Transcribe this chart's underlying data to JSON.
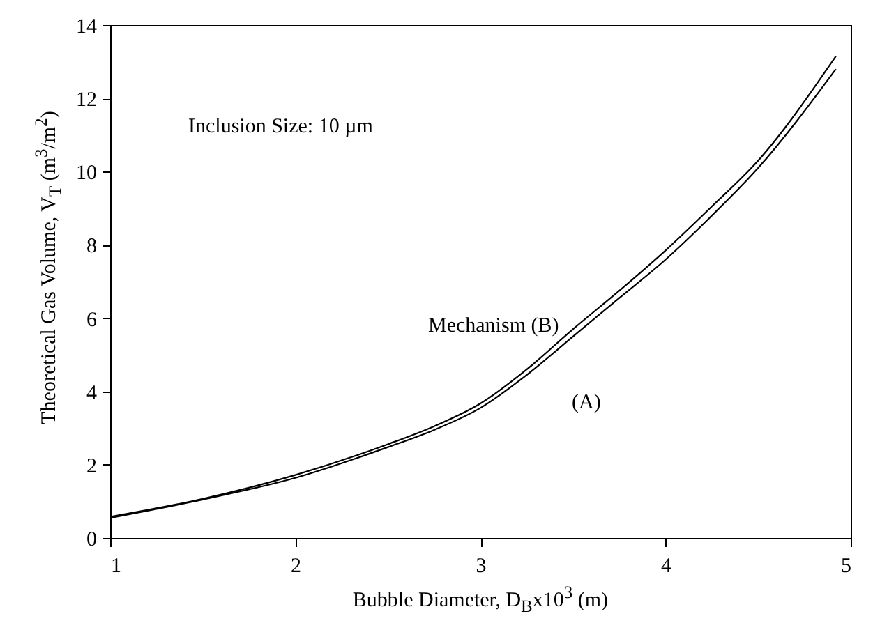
{
  "chart_data": {
    "type": "line",
    "xlabel": "Bubble Diameter,  D$_{B}$x10$^{3}$  (m)",
    "ylabel": "Theoretical Gas Volume,  V$_{T}$  (m$^{3}$/m$^{2}$)",
    "x": [
      1,
      1.5,
      2,
      2.5,
      2.75,
      3,
      3.25,
      3.5,
      3.75,
      4,
      4.25,
      4.5,
      4.92
    ],
    "series": [
      {
        "color": "#000000",
        "values": [
          0.58,
          1.07,
          1.72,
          2.56,
          3.05,
          3.67,
          4.6,
          5.7,
          6.75,
          7.85,
          9.05,
          10.3,
          13.15
        ]
      },
      {
        "color": "#000000",
        "values": [
          0.55,
          1.05,
          1.64,
          2.48,
          2.95,
          3.55,
          4.45,
          5.5,
          6.55,
          7.6,
          8.8,
          10.1,
          12.8
        ]
      }
    ],
    "xlim": [
      1,
      5
    ],
    "xticks": [
      1,
      2,
      3,
      4,
      5
    ],
    "ylim": [
      0,
      14
    ],
    "yticks": [
      0,
      2,
      4,
      6,
      8,
      10,
      12,
      14
    ],
    "grid": false,
    "marker": "none",
    "line_style": "solid",
    "annotations": [
      "Inclusion Size: 10 µm",
      "Mechanism (B)",
      "(A)"
    ]
  }
}
